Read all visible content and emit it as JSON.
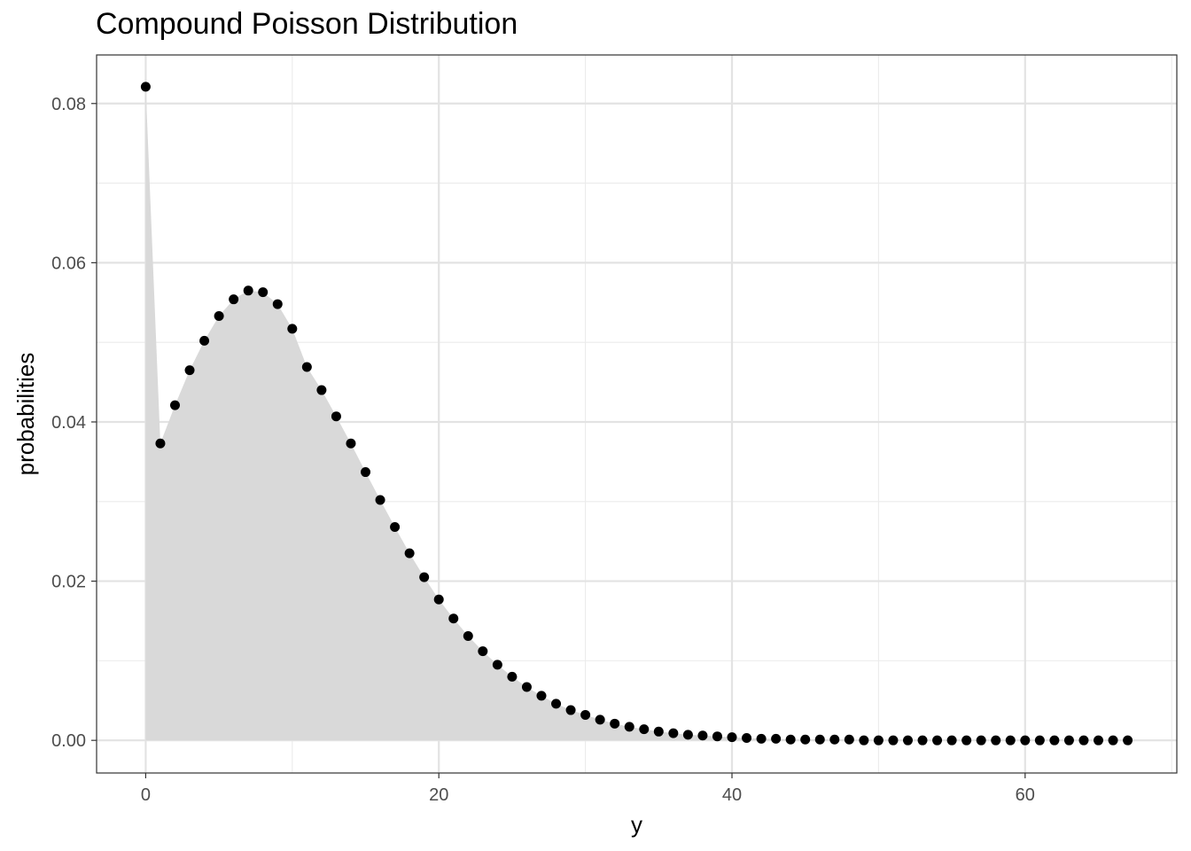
{
  "chart_data": {
    "type": "scatter",
    "title": "Compound Poisson Distribution",
    "xlabel": "y",
    "ylabel": "probabilities",
    "xlim": [
      -3.35,
      70.35
    ],
    "ylim": [
      -0.0041,
      0.0861
    ],
    "x_ticks": [
      0,
      20,
      40,
      60
    ],
    "x_tick_labels": [
      "0",
      "20",
      "40",
      "60"
    ],
    "y_ticks": [
      0,
      0.02,
      0.04,
      0.06,
      0.08
    ],
    "y_tick_labels": [
      "0.00",
      "0.02",
      "0.04",
      "0.06",
      "0.08"
    ],
    "grid": true,
    "area_fill": "#d9d9d9",
    "point_color": "#000000",
    "series": [
      {
        "x": [
          0,
          1,
          2,
          3,
          4,
          5,
          6,
          7,
          8,
          9,
          10,
          11,
          12,
          13,
          14,
          15,
          16,
          17,
          18,
          19,
          20,
          21,
          22,
          23,
          24,
          25,
          26,
          27,
          28,
          29,
          30,
          31,
          32,
          33,
          34,
          35,
          36,
          37,
          38,
          39,
          40,
          41,
          42,
          43,
          44,
          45,
          46,
          47,
          48,
          49,
          50,
          51,
          52,
          53,
          54,
          55,
          56,
          57,
          58,
          59,
          60,
          61,
          62,
          63,
          64,
          65,
          66,
          67
        ],
        "values": [
          0.0821,
          0.0373,
          0.0421,
          0.0465,
          0.0502,
          0.0533,
          0.0554,
          0.0565,
          0.0563,
          0.0548,
          0.0517,
          0.0469,
          0.044,
          0.0407,
          0.0373,
          0.0337,
          0.0302,
          0.0268,
          0.0235,
          0.0205,
          0.0177,
          0.0153,
          0.0131,
          0.0112,
          0.0095,
          0.008,
          0.0067,
          0.0056,
          0.0046,
          0.0038,
          0.0032,
          0.0026,
          0.0021,
          0.0017,
          0.0014,
          0.0011,
          0.0009,
          0.0007,
          0.0006,
          0.0005,
          0.0004,
          0.0003,
          0.0002,
          0.0002,
          0.0001,
          0.0001,
          0.0001,
          0.0001,
          0.0001,
          0,
          0,
          0,
          0,
          0,
          0,
          0,
          0,
          0,
          0,
          0,
          0,
          0,
          0,
          0,
          0,
          0,
          0,
          0
        ]
      }
    ]
  }
}
